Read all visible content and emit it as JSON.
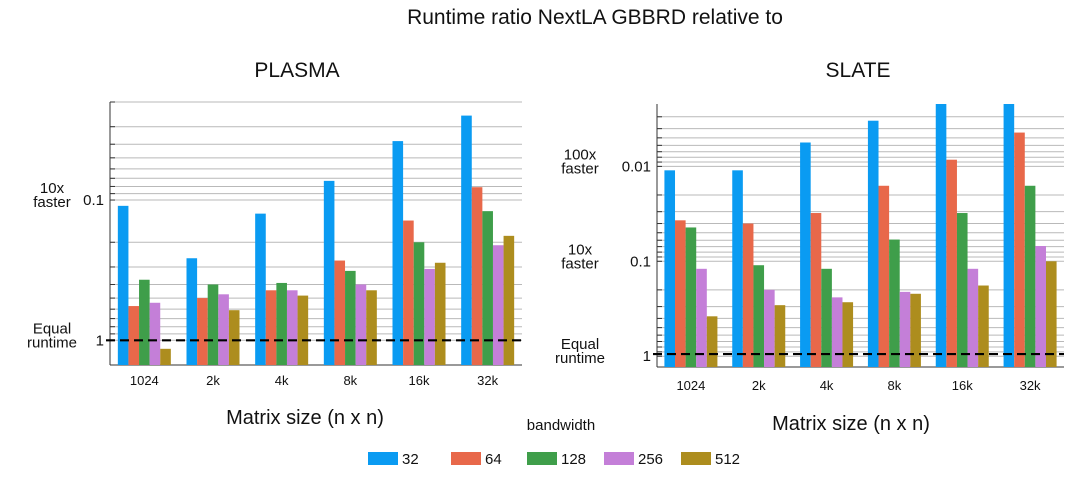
{
  "title": "Runtime ratio NextLA GBBRD relative to",
  "legend": {
    "title": "bandwidth",
    "entries": [
      "32",
      "64",
      "128",
      "256",
      "512"
    ]
  },
  "colors": {
    "32": "#0a9bf2",
    "64": "#e8684a",
    "128": "#3f9e4a",
    "256": "#c47fd8",
    "512": "#ad8d1e"
  },
  "chart_data": [
    {
      "type": "bar",
      "title": "PLASMA",
      "xlabel": "Matrix size (n x n)",
      "ylabel": "",
      "yscale": "log-inverted",
      "ylim": [
        0.02,
        1.5
      ],
      "yticks": [
        {
          "value": 0.1,
          "label": "0.1"
        },
        {
          "value": 1,
          "label": "1"
        }
      ],
      "annotations": [
        {
          "text": [
            "10x",
            "faster"
          ],
          "at": 0.1
        },
        {
          "text": [
            "Equal",
            "runtime"
          ],
          "at": 1
        }
      ],
      "reference_line": 1,
      "categories": [
        "1024",
        "2k",
        "4k",
        "8k",
        "16k",
        "32k"
      ],
      "series": [
        {
          "name": "32",
          "values": [
            0.11,
            0.26,
            0.125,
            0.073,
            0.038,
            0.025
          ]
        },
        {
          "name": "64",
          "values": [
            0.57,
            0.5,
            0.44,
            0.27,
            0.14,
            0.081
          ]
        },
        {
          "name": "128",
          "values": [
            0.37,
            0.4,
            0.39,
            0.32,
            0.2,
            0.12
          ]
        },
        {
          "name": "256",
          "values": [
            0.54,
            0.47,
            0.44,
            0.4,
            0.31,
            0.21
          ]
        },
        {
          "name": "512",
          "values": [
            1.15,
            0.61,
            0.48,
            0.44,
            0.28,
            0.18
          ]
        }
      ]
    },
    {
      "type": "bar",
      "title": "SLATE",
      "xlabel": "Matrix size (n x n)",
      "ylabel": "",
      "yscale": "log-inverted",
      "ylim": [
        0.0022,
        1.3
      ],
      "yticks": [
        {
          "value": 0.01,
          "label": "0.01"
        },
        {
          "value": 0.1,
          "label": "0.1"
        },
        {
          "value": 1,
          "label": "1"
        }
      ],
      "annotations": [
        {
          "text": [
            "100x",
            "faster"
          ],
          "at": 0.01
        },
        {
          "text": [
            "10x",
            "faster"
          ],
          "at": 0.1
        },
        {
          "text": [
            "Equal",
            "runtime"
          ],
          "at": 1
        }
      ],
      "reference_line": 0.95,
      "categories": [
        "1024",
        "2k",
        "4k",
        "8k",
        "16k",
        "32k"
      ],
      "series": [
        {
          "name": "32",
          "values": [
            0.011,
            0.011,
            0.0056,
            0.0033,
            0.0022,
            0.0022
          ]
        },
        {
          "name": "64",
          "values": [
            0.037,
            0.04,
            0.031,
            0.016,
            0.0085,
            0.0044
          ]
        },
        {
          "name": "128",
          "values": [
            0.044,
            0.11,
            0.12,
            0.059,
            0.031,
            0.016
          ]
        },
        {
          "name": "256",
          "values": [
            0.12,
            0.2,
            0.24,
            0.21,
            0.12,
            0.069
          ]
        },
        {
          "name": "512",
          "values": [
            0.38,
            0.29,
            0.27,
            0.22,
            0.18,
            0.1
          ]
        }
      ]
    }
  ]
}
